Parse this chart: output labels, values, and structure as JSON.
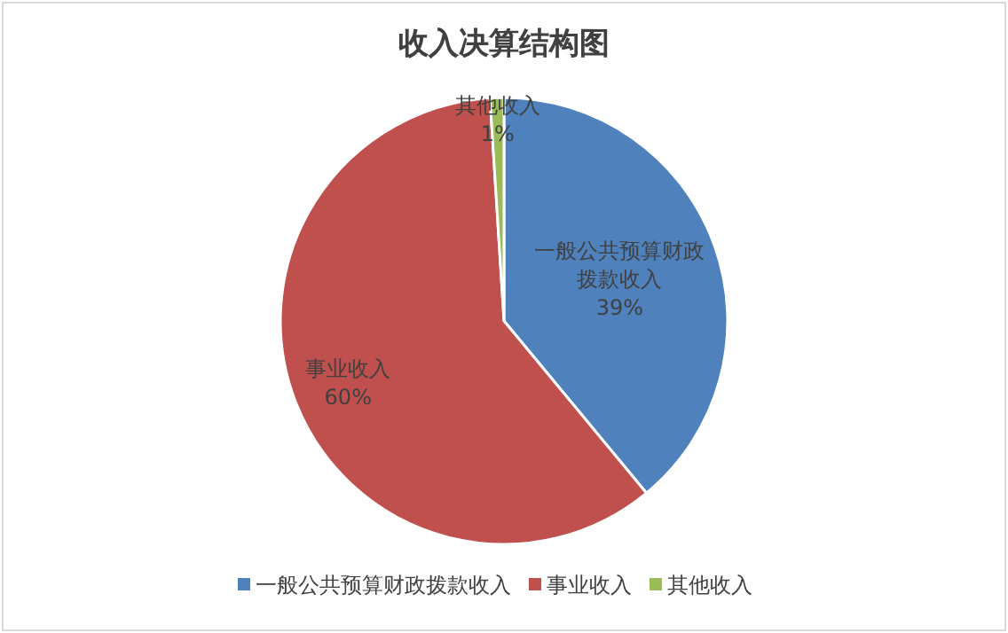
{
  "chart_data": {
    "type": "pie",
    "title": "收入决算结构图",
    "categories": [
      "一般公共预算财政拨款收入",
      "事业收入",
      "其他收入"
    ],
    "values": [
      39,
      60,
      1
    ],
    "colors": [
      "#4f81bd",
      "#c0504d",
      "#9bbb59"
    ],
    "value_labels": [
      "39%",
      "60%",
      "1%"
    ],
    "legend": "bottom"
  }
}
